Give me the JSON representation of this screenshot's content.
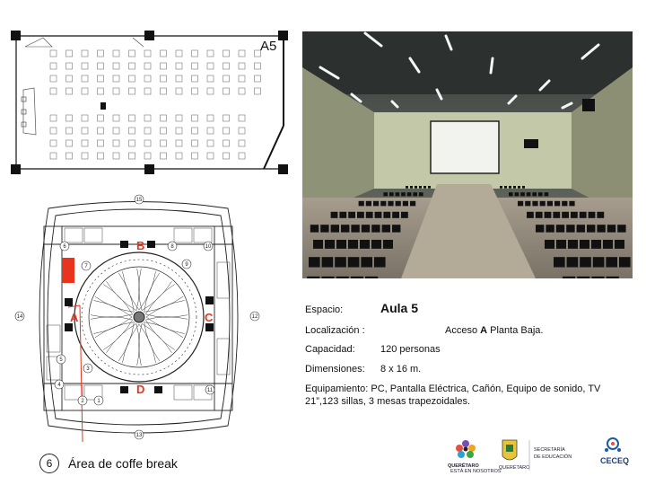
{
  "top_plan": {
    "room_code": "A5"
  },
  "info": {
    "espacio_label": "Espacio:",
    "espacio_value": "Aula 5",
    "localizacion_label": "Localización :",
    "localizacion_prefix": "Acceso",
    "localizacion_access": "A",
    "localizacion_suffix": "Planta Baja.",
    "capacidad_label": "Capacidad:",
    "capacidad_value": "120 personas",
    "dimensiones_label": "Dimensiones:",
    "dimensiones_value": "8 x 16 m.",
    "equipamiento_text": "Equipamiento:  PC, Pantalla Eléctrica, Cañón, Equipo de sonido, TV 21”,123 sillas, 3 mesas  trapezoidales."
  },
  "floor_plan": {
    "access_labels": [
      "A",
      "B",
      "C",
      "D"
    ],
    "numbers": [
      "15",
      "14",
      "12",
      "13",
      "7",
      "8",
      "9",
      "10",
      "11",
      "6",
      "5",
      "4",
      "3",
      "2",
      "1",
      "6",
      "8",
      "9"
    ]
  },
  "legend": {
    "number": "6",
    "text": "Área de coffe break"
  },
  "logos": {
    "queretaro_name": "QUERÉTARO",
    "queretaro_tagline": "ESTÁ EN NOSOTROS",
    "seal_text": "QUERÉTARO",
    "secretaria_line1": "SECRETARÍA",
    "secretaria_line2": "DE EDUCACIÓN",
    "ceceq_name": "CECEQ"
  },
  "colors": {
    "accent_red": "#e8341c",
    "photo_floor": "#8c8478",
    "photo_wall": "#c9cfb2"
  }
}
